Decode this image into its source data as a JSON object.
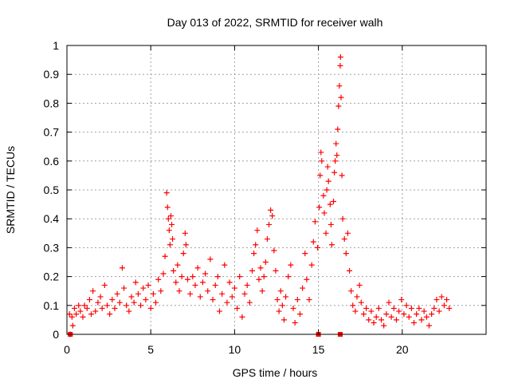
{
  "chart_data": {
    "type": "scatter",
    "title": "Day 013 of 2022, SRMTID for receiver walh",
    "xlabel": "GPS time / hours",
    "ylabel": "SRMTID / TECUs",
    "xlim": [
      0,
      25
    ],
    "ylim": [
      0,
      1
    ],
    "xticks": [
      0,
      5,
      10,
      15,
      20
    ],
    "xtick_labels": [
      "0",
      "5",
      "10",
      "15",
      "20"
    ],
    "yticks": [
      0,
      0.1,
      0.2,
      0.3,
      0.4,
      0.5,
      0.6,
      0.7,
      0.8,
      0.9,
      1
    ],
    "ytick_labels": [
      "0",
      "0.1",
      "0.2",
      "0.3",
      "0.4",
      "0.5",
      "0.6",
      "0.7",
      "0.8",
      "0.9",
      "1"
    ],
    "grid": true,
    "marker": "+",
    "marker_color": "#ff0000",
    "series": [
      {
        "name": "SRMTID",
        "points": [
          [
            0.2,
            0.0
          ],
          [
            0.15,
            0.07
          ],
          [
            0.3,
            0.06
          ],
          [
            0.35,
            0.03
          ],
          [
            0.45,
            0.09
          ],
          [
            0.55,
            0.07
          ],
          [
            0.7,
            0.1
          ],
          [
            0.8,
            0.08
          ],
          [
            0.95,
            0.06
          ],
          [
            1.05,
            0.1
          ],
          [
            1.2,
            0.09
          ],
          [
            1.35,
            0.12
          ],
          [
            1.45,
            0.07
          ],
          [
            1.55,
            0.15
          ],
          [
            1.7,
            0.08
          ],
          [
            1.85,
            0.11
          ],
          [
            2.0,
            0.13
          ],
          [
            2.1,
            0.09
          ],
          [
            2.25,
            0.17
          ],
          [
            2.4,
            0.1
          ],
          [
            2.55,
            0.07
          ],
          [
            2.7,
            0.12
          ],
          [
            2.85,
            0.09
          ],
          [
            3.0,
            0.14
          ],
          [
            3.15,
            0.11
          ],
          [
            3.3,
            0.23
          ],
          [
            3.4,
            0.16
          ],
          [
            3.55,
            0.1
          ],
          [
            3.7,
            0.08
          ],
          [
            3.85,
            0.13
          ],
          [
            4.0,
            0.11
          ],
          [
            4.1,
            0.18
          ],
          [
            4.25,
            0.14
          ],
          [
            4.4,
            0.1
          ],
          [
            4.55,
            0.16
          ],
          [
            4.7,
            0.12
          ],
          [
            4.85,
            0.17
          ],
          [
            5.0,
            0.09
          ],
          [
            5.15,
            0.14
          ],
          [
            5.3,
            0.11
          ],
          [
            5.45,
            0.19
          ],
          [
            5.6,
            0.15
          ],
          [
            5.75,
            0.21
          ],
          [
            5.85,
            0.27
          ],
          [
            5.95,
            0.49
          ],
          [
            6.0,
            0.44
          ],
          [
            6.05,
            0.4
          ],
          [
            6.1,
            0.36
          ],
          [
            6.15,
            0.31
          ],
          [
            6.2,
            0.41
          ],
          [
            6.25,
            0.38
          ],
          [
            6.3,
            0.33
          ],
          [
            6.35,
            0.22
          ],
          [
            6.5,
            0.18
          ],
          [
            6.6,
            0.24
          ],
          [
            6.7,
            0.15
          ],
          [
            6.85,
            0.2
          ],
          [
            6.95,
            0.28
          ],
          [
            7.05,
            0.35
          ],
          [
            7.1,
            0.31
          ],
          [
            7.2,
            0.19
          ],
          [
            7.35,
            0.14
          ],
          [
            7.5,
            0.2
          ],
          [
            7.65,
            0.17
          ],
          [
            7.8,
            0.23
          ],
          [
            7.95,
            0.13
          ],
          [
            8.1,
            0.18
          ],
          [
            8.25,
            0.21
          ],
          [
            8.4,
            0.15
          ],
          [
            8.55,
            0.26
          ],
          [
            8.7,
            0.12
          ],
          [
            8.85,
            0.17
          ],
          [
            9.0,
            0.2
          ],
          [
            9.1,
            0.08
          ],
          [
            9.25,
            0.14
          ],
          [
            9.4,
            0.24
          ],
          [
            9.55,
            0.11
          ],
          [
            9.7,
            0.18
          ],
          [
            9.85,
            0.13
          ],
          [
            10.0,
            0.16
          ],
          [
            10.15,
            0.09
          ],
          [
            10.3,
            0.2
          ],
          [
            10.45,
            0.06
          ],
          [
            10.6,
            0.14
          ],
          [
            10.75,
            0.17
          ],
          [
            10.9,
            0.11
          ],
          [
            11.05,
            0.22
          ],
          [
            11.15,
            0.28
          ],
          [
            11.25,
            0.31
          ],
          [
            11.35,
            0.36
          ],
          [
            11.45,
            0.19
          ],
          [
            11.55,
            0.23
          ],
          [
            11.65,
            0.15
          ],
          [
            11.75,
            0.2
          ],
          [
            11.85,
            0.25
          ],
          [
            11.95,
            0.33
          ],
          [
            12.05,
            0.38
          ],
          [
            12.15,
            0.43
          ],
          [
            12.25,
            0.41
          ],
          [
            12.35,
            0.29
          ],
          [
            12.45,
            0.22
          ],
          [
            12.55,
            0.12
          ],
          [
            12.65,
            0.08
          ],
          [
            12.75,
            0.15
          ],
          [
            12.85,
            0.1
          ],
          [
            12.95,
            0.05
          ],
          [
            13.05,
            0.13
          ],
          [
            13.2,
            0.2
          ],
          [
            13.35,
            0.24
          ],
          [
            13.5,
            0.09
          ],
          [
            13.6,
            0.04
          ],
          [
            13.75,
            0.12
          ],
          [
            13.9,
            0.07
          ],
          [
            14.05,
            0.16
          ],
          [
            14.2,
            0.28
          ],
          [
            14.3,
            0.19
          ],
          [
            14.45,
            0.12
          ],
          [
            14.6,
            0.24
          ],
          [
            14.7,
            0.32
          ],
          [
            14.8,
            0.39
          ],
          [
            14.95,
            0.3
          ],
          [
            15.05,
            0.44
          ],
          [
            15.1,
            0.55
          ],
          [
            15.15,
            0.63
          ],
          [
            15.2,
            0.6
          ],
          [
            15.3,
            0.48
          ],
          [
            15.35,
            0.42
          ],
          [
            15.45,
            0.35
          ],
          [
            15.5,
            0.5
          ],
          [
            15.55,
            0.58
          ],
          [
            15.6,
            0.53
          ],
          [
            15.7,
            0.45
          ],
          [
            15.75,
            0.38
          ],
          [
            15.8,
            0.31
          ],
          [
            15.9,
            0.46
          ],
          [
            15.95,
            0.56
          ],
          [
            16.0,
            0.6
          ],
          [
            16.05,
            0.66
          ],
          [
            16.1,
            0.62
          ],
          [
            16.15,
            0.71
          ],
          [
            16.2,
            0.79
          ],
          [
            16.25,
            0.86
          ],
          [
            16.3,
            0.93
          ],
          [
            16.32,
            0.96
          ],
          [
            16.35,
            0.82
          ],
          [
            16.4,
            0.55
          ],
          [
            16.45,
            0.4
          ],
          [
            16.55,
            0.33
          ],
          [
            16.65,
            0.28
          ],
          [
            16.75,
            0.35
          ],
          [
            16.85,
            0.22
          ],
          [
            16.95,
            0.15
          ],
          [
            17.05,
            0.1
          ],
          [
            17.2,
            0.08
          ],
          [
            17.3,
            0.13
          ],
          [
            17.45,
            0.17
          ],
          [
            17.55,
            0.11
          ],
          [
            17.7,
            0.07
          ],
          [
            17.85,
            0.09
          ],
          [
            18.0,
            0.05
          ],
          [
            18.15,
            0.08
          ],
          [
            18.3,
            0.04
          ],
          [
            18.45,
            0.06
          ],
          [
            18.6,
            0.09
          ],
          [
            18.75,
            0.05
          ],
          [
            18.9,
            0.03
          ],
          [
            19.05,
            0.07
          ],
          [
            19.2,
            0.11
          ],
          [
            19.35,
            0.06
          ],
          [
            19.5,
            0.09
          ],
          [
            19.65,
            0.05
          ],
          [
            19.8,
            0.08
          ],
          [
            19.95,
            0.12
          ],
          [
            20.1,
            0.07
          ],
          [
            20.25,
            0.1
          ],
          [
            20.4,
            0.06
          ],
          [
            20.55,
            0.09
          ],
          [
            20.7,
            0.04
          ],
          [
            20.85,
            0.07
          ],
          [
            21.0,
            0.09
          ],
          [
            21.15,
            0.05
          ],
          [
            21.3,
            0.08
          ],
          [
            21.45,
            0.06
          ],
          [
            21.6,
            0.03
          ],
          [
            21.75,
            0.07
          ],
          [
            21.9,
            0.09
          ],
          [
            22.05,
            0.12
          ],
          [
            22.2,
            0.08
          ],
          [
            22.35,
            0.13
          ],
          [
            22.5,
            0.1
          ],
          [
            22.65,
            0.12
          ],
          [
            22.8,
            0.09
          ]
        ]
      }
    ],
    "zero_markers": [
      [
        0.2,
        0.0
      ],
      [
        15.0,
        0.0
      ],
      [
        16.3,
        0.0
      ]
    ]
  }
}
